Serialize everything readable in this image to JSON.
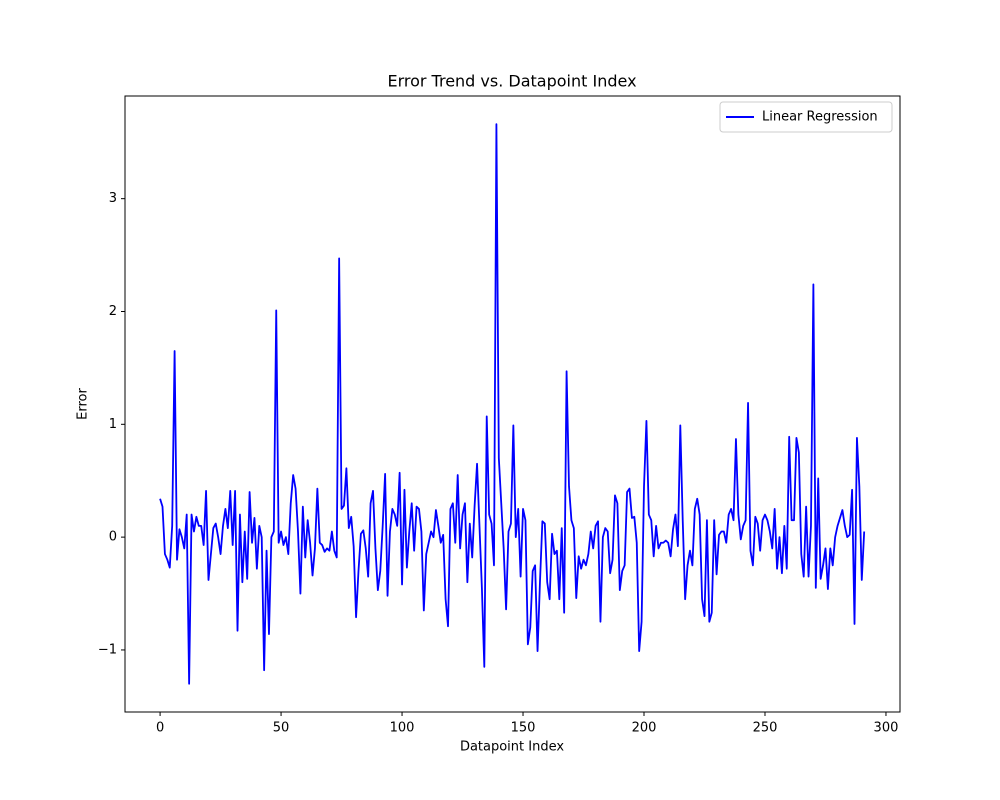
{
  "chart_data": {
    "type": "line",
    "title": "Error Trend vs. Datapoint Index",
    "xlabel": "Datapoint Index",
    "ylabel": "Error",
    "x": [
      0,
      1,
      2,
      3,
      4,
      5,
      6,
      7,
      8,
      9,
      10,
      11,
      12,
      13,
      14,
      15,
      16,
      17,
      18,
      19,
      20,
      21,
      22,
      23,
      24,
      25,
      26,
      27,
      28,
      29,
      30,
      31,
      32,
      33,
      34,
      35,
      36,
      37,
      38,
      39,
      40,
      41,
      42,
      43,
      44,
      45,
      46,
      47,
      48,
      49,
      50,
      51,
      52,
      53,
      54,
      55,
      56,
      57,
      58,
      59,
      60,
      61,
      62,
      63,
      64,
      65,
      66,
      67,
      68,
      69,
      70,
      71,
      72,
      73,
      74,
      75,
      76,
      77,
      78,
      79,
      80,
      81,
      82,
      83,
      84,
      85,
      86,
      87,
      88,
      89,
      90,
      91,
      92,
      93,
      94,
      95,
      96,
      97,
      98,
      99,
      100,
      101,
      102,
      103,
      104,
      105,
      106,
      107,
      108,
      109,
      110,
      111,
      112,
      113,
      114,
      115,
      116,
      117,
      118,
      119,
      120,
      121,
      122,
      123,
      124,
      125,
      126,
      127,
      128,
      129,
      130,
      131,
      132,
      133,
      134,
      135,
      136,
      137,
      138,
      139,
      140,
      141,
      142,
      143,
      144,
      145,
      146,
      147,
      148,
      149,
      150,
      151,
      152,
      153,
      154,
      155,
      156,
      157,
      158,
      159,
      160,
      161,
      162,
      163,
      164,
      165,
      166,
      167,
      168,
      169,
      170,
      171,
      172,
      173,
      174,
      175,
      176,
      177,
      178,
      179,
      180,
      181,
      182,
      183,
      184,
      185,
      186,
      187,
      188,
      189,
      190,
      191,
      192,
      193,
      194,
      195,
      196,
      197,
      198,
      199,
      200,
      201,
      202,
      203,
      204,
      205,
      206,
      207,
      208,
      209,
      210,
      211,
      212,
      213,
      214,
      215,
      216,
      217,
      218,
      219,
      220,
      221,
      222,
      223,
      224,
      225,
      226,
      227,
      228,
      229,
      230,
      231,
      232,
      233,
      234,
      235,
      236,
      237,
      238,
      239,
      240,
      241,
      242,
      243,
      244,
      245,
      246,
      247,
      248,
      249,
      250,
      251,
      252,
      253,
      254,
      255,
      256,
      257,
      258,
      259,
      260,
      261,
      262,
      263,
      264,
      265,
      266,
      267,
      268,
      269,
      270,
      271,
      272,
      273,
      274,
      275,
      276,
      277,
      278,
      279,
      280,
      281,
      282,
      283,
      284,
      285,
      286,
      287,
      288,
      289,
      290,
      291
    ],
    "series": [
      {
        "name": "Linear Regression",
        "color": "#0000ff",
        "values": [
          0.34,
          0.27,
          -0.15,
          -0.2,
          -0.27,
          0.1,
          1.65,
          -0.2,
          0.07,
          0,
          -0.1,
          0.2,
          -1.3,
          0.2,
          0.05,
          0.18,
          0.1,
          0.1,
          -0.07,
          0.41,
          -0.38,
          -0.15,
          0.08,
          0.12,
          0,
          -0.15,
          0.1,
          0.25,
          0.08,
          0.41,
          -0.07,
          0.41,
          -0.83,
          0.2,
          -0.4,
          0.05,
          -0.37,
          0.4,
          -0.05,
          0.17,
          -0.28,
          0.1,
          0,
          -1.18,
          -0.12,
          -0.86,
          0,
          0.05,
          2.01,
          -0.05,
          0.05,
          -0.07,
          0,
          -0.15,
          0.3,
          0.55,
          0.43,
          0.05,
          -0.5,
          0.27,
          -0.18,
          0.15,
          -0.05,
          -0.34,
          -0.1,
          0.43,
          -0.05,
          -0.07,
          -0.13,
          -0.1,
          -0.12,
          0.05,
          -0.12,
          -0.18,
          2.47,
          0.25,
          0.28,
          0.61,
          0.08,
          0.18,
          -0.08,
          -0.71,
          -0.3,
          0.03,
          0.06,
          -0.1,
          -0.35,
          0.3,
          0.41,
          -0.1,
          -0.47,
          -0.3,
          0.1,
          0.56,
          -0.52,
          0.05,
          0.25,
          0.2,
          0.1,
          0.57,
          -0.42,
          0.42,
          -0.27,
          0.05,
          0.3,
          -0.12,
          0.27,
          0.25,
          0.05,
          -0.65,
          -0.15,
          -0.05,
          0.05,
          0,
          0.24,
          0.1,
          -0.05,
          0.02,
          -0.55,
          -0.79,
          0.25,
          0.3,
          -0.05,
          0.55,
          -0.1,
          0.2,
          0.3,
          -0.4,
          0.12,
          -0.18,
          0.28,
          0.65,
          0.1,
          -0.45,
          -1.15,
          1.07,
          0.2,
          0.12,
          -0.25,
          3.66,
          0.7,
          0.3,
          -0.1,
          -0.64,
          0.05,
          0.12,
          0.99,
          0,
          0.25,
          -0.35,
          0.25,
          0.15,
          -0.95,
          -0.8,
          -0.3,
          -0.25,
          -1.01,
          -0.4,
          0.14,
          0.12,
          -0.4,
          -0.55,
          0.03,
          -0.15,
          -0.12,
          -0.55,
          0.08,
          -0.67,
          1.47,
          0.45,
          0.15,
          0.08,
          -0.54,
          -0.17,
          -0.28,
          -0.2,
          -0.25,
          -0.15,
          0.05,
          -0.1,
          0.1,
          0.14,
          -0.75,
          0,
          0.08,
          0.05,
          -0.32,
          -0.2,
          0.37,
          0.3,
          -0.47,
          -0.3,
          -0.25,
          0.4,
          0.43,
          0.17,
          0.18,
          -0.05,
          -1.01,
          -0.75,
          0.45,
          1.03,
          0.2,
          0.15,
          -0.17,
          0.1,
          -0.1,
          -0.05,
          -0.05,
          -0.03,
          -0.05,
          -0.17,
          0.07,
          0.2,
          -0.08,
          0.99,
          0.15,
          -0.55,
          -0.25,
          -0.12,
          -0.25,
          0.25,
          0.34,
          0.2,
          -0.55,
          -0.7,
          0.15,
          -0.75,
          -0.67,
          0.15,
          -0.33,
          0.02,
          0.05,
          0.05,
          -0.05,
          0.2,
          0.25,
          0.15,
          0.87,
          0.2,
          -0.02,
          0.1,
          0.15,
          1.19,
          -0.12,
          -0.25,
          0.18,
          0.12,
          -0.12,
          0.15,
          0.2,
          0.15,
          0.05,
          -0.1,
          0.25,
          -0.28,
          0,
          -0.32,
          0.1,
          -0.28,
          0.89,
          0.15,
          0.15,
          0.88,
          0.75,
          -0.15,
          -0.35,
          0.27,
          -0.35,
          0.1,
          2.24,
          -0.45,
          0.52,
          -0.37,
          -0.25,
          -0.1,
          -0.46,
          -0.1,
          -0.25,
          0,
          0.1,
          0.17,
          0.24,
          0.1,
          0,
          0.02,
          0.42,
          -0.77,
          0.88,
          0.45,
          -0.38,
          0.05
        ]
      }
    ],
    "xlim": [
      -14.5,
      305.8
    ],
    "ylim": [
      -1.55,
      3.91
    ],
    "xticks": [
      0,
      50,
      100,
      150,
      200,
      250,
      300
    ],
    "yticks": [
      {
        "value": -1,
        "label": "−1"
      },
      0,
      1,
      2,
      3
    ],
    "legend": "upper right"
  }
}
